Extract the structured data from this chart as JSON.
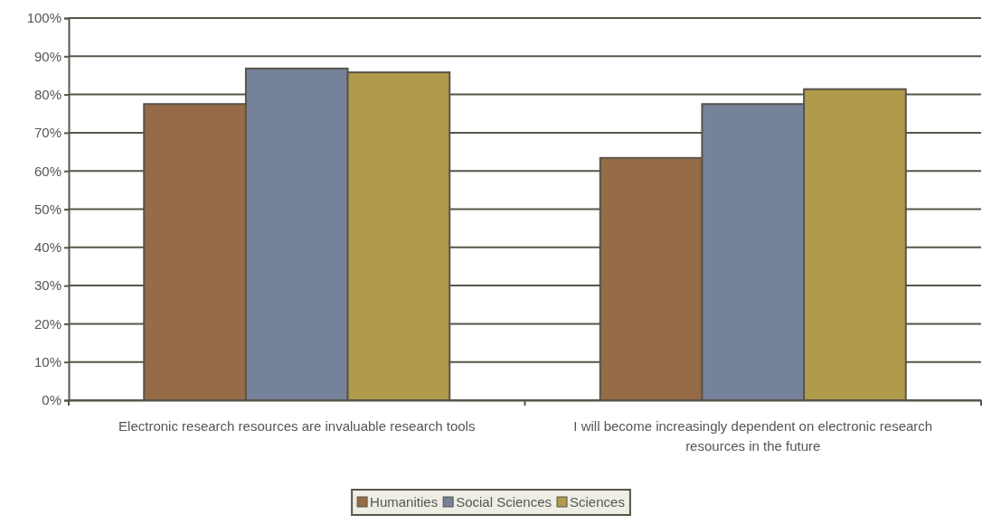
{
  "chart_data": {
    "type": "bar",
    "categories": [
      "Electronic research resources are invaluable research tools",
      "I will become increasingly dependent on electronic research resources in the future"
    ],
    "series": [
      {
        "name": "Humanities",
        "color": "#956c47",
        "values": [
          77.5,
          63.4
        ]
      },
      {
        "name": "Social Sciences",
        "color": "#768299",
        "values": [
          86.8,
          77.5
        ]
      },
      {
        "name": "Sciences",
        "color": "#b09a4b",
        "values": [
          85.8,
          81.4
        ]
      }
    ],
    "ylim": [
      0,
      100
    ],
    "yticks": [
      {
        "value": 0,
        "label": "0%"
      },
      {
        "value": 10,
        "label": "10%"
      },
      {
        "value": 20,
        "label": "20%"
      },
      {
        "value": 30,
        "label": "30%"
      },
      {
        "value": 40,
        "label": "40%"
      },
      {
        "value": 50,
        "label": "50%"
      },
      {
        "value": 60,
        "label": "60%"
      },
      {
        "value": 70,
        "label": "70%"
      },
      {
        "value": 80,
        "label": "80%"
      },
      {
        "value": 90,
        "label": "90%"
      },
      {
        "value": 100,
        "label": "100%"
      }
    ],
    "grid": "y",
    "legend": "bottom"
  }
}
